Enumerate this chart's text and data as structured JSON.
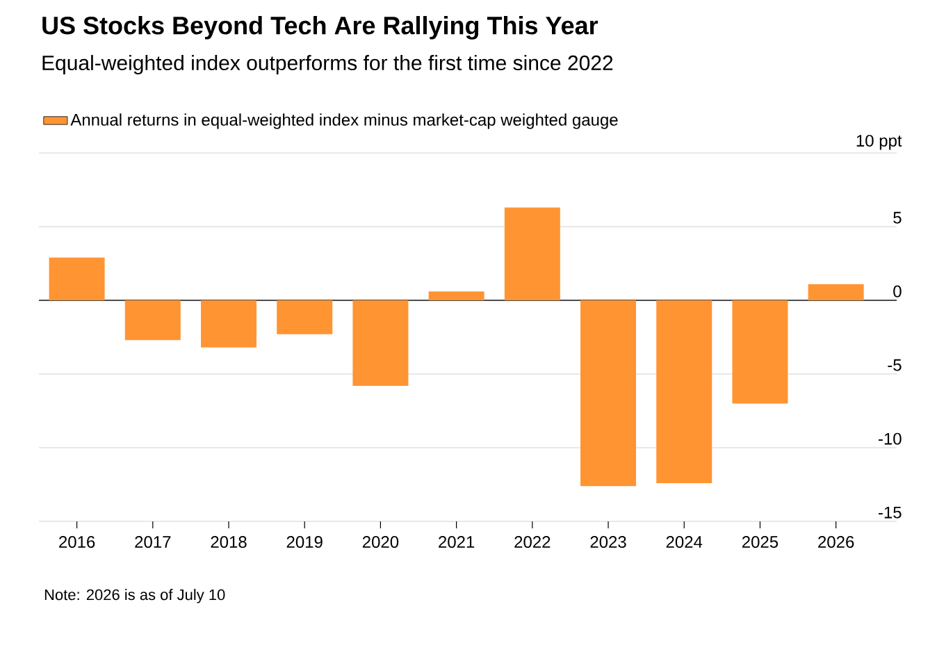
{
  "chart_data": {
    "type": "bar",
    "title": "US Stocks Beyond Tech Are Rallying This Year",
    "subtitle": "Equal-weighted index outperforms for the first time since 2022",
    "categories": [
      "2016",
      "2017",
      "2018",
      "2019",
      "2020",
      "2021",
      "2022",
      "2023",
      "2024",
      "2025",
      "2026"
    ],
    "series": [
      {
        "name": "Annual returns in equal-weighted index minus market-cap weighted gauge",
        "color": "#ff9433",
        "values": [
          2.9,
          -2.7,
          -3.2,
          -2.3,
          -5.8,
          0.6,
          6.3,
          -12.6,
          -12.4,
          -7.0,
          1.1
        ]
      }
    ],
    "ylim": [
      -15,
      10
    ],
    "yticks": [
      -15,
      -10,
      -5,
      0,
      5,
      {
        "value": 10,
        "label": "10 ppt"
      }
    ],
    "grid": "y",
    "legend": "top left",
    "annotations": [
      "Note: 2026 is as of July 10"
    ]
  }
}
